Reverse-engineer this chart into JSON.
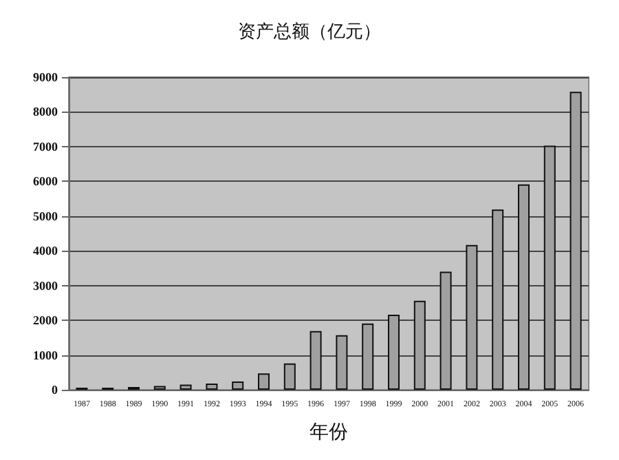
{
  "chart_data": {
    "type": "bar",
    "title": "资产总额（亿元）",
    "xlabel": "年份",
    "categories": [
      "1987",
      "1988",
      "1989",
      "1990",
      "1991",
      "1992",
      "1993",
      "1994",
      "1995",
      "1996",
      "1997",
      "1998",
      "1999",
      "2000",
      "2001",
      "2002",
      "2003",
      "2004",
      "2005",
      "2006"
    ],
    "values": [
      60,
      60,
      80,
      110,
      150,
      180,
      240,
      470,
      760,
      1690,
      1570,
      1910,
      2160,
      2560,
      3400,
      4170,
      5190,
      5910,
      7030,
      8580
    ],
    "color": "#a0a0a0",
    "ylim": [
      0,
      9000
    ],
    "yticks": [
      0,
      1000,
      2000,
      3000,
      4000,
      5000,
      6000,
      7000,
      8000,
      9000
    ],
    "grid": true
  }
}
